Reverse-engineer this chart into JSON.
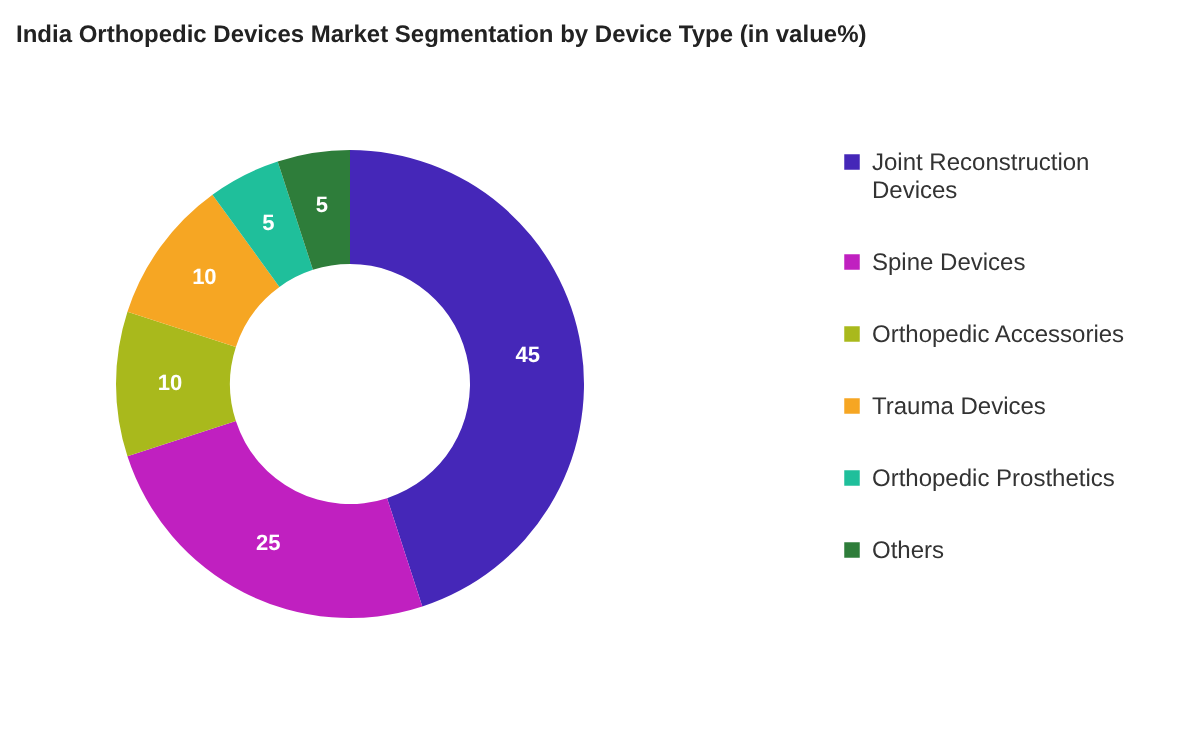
{
  "chart_data": {
    "type": "donut",
    "title": "India Orthopedic Devices Market Segmentation by Device Type (in value%)",
    "categories": [
      "Joint Reconstruction Devices",
      "Spine Devices",
      "Orthopedic Accessories",
      "Trauma Devices",
      "Orthopedic Prosthetics",
      "Others"
    ],
    "values": [
      45,
      25,
      10,
      10,
      5,
      5
    ],
    "colors": [
      "#4527b8",
      "#c020c0",
      "#a9b91c",
      "#f6a623",
      "#1fbf9b",
      "#2e7d3a"
    ],
    "data_labels": true,
    "legend": "right"
  }
}
